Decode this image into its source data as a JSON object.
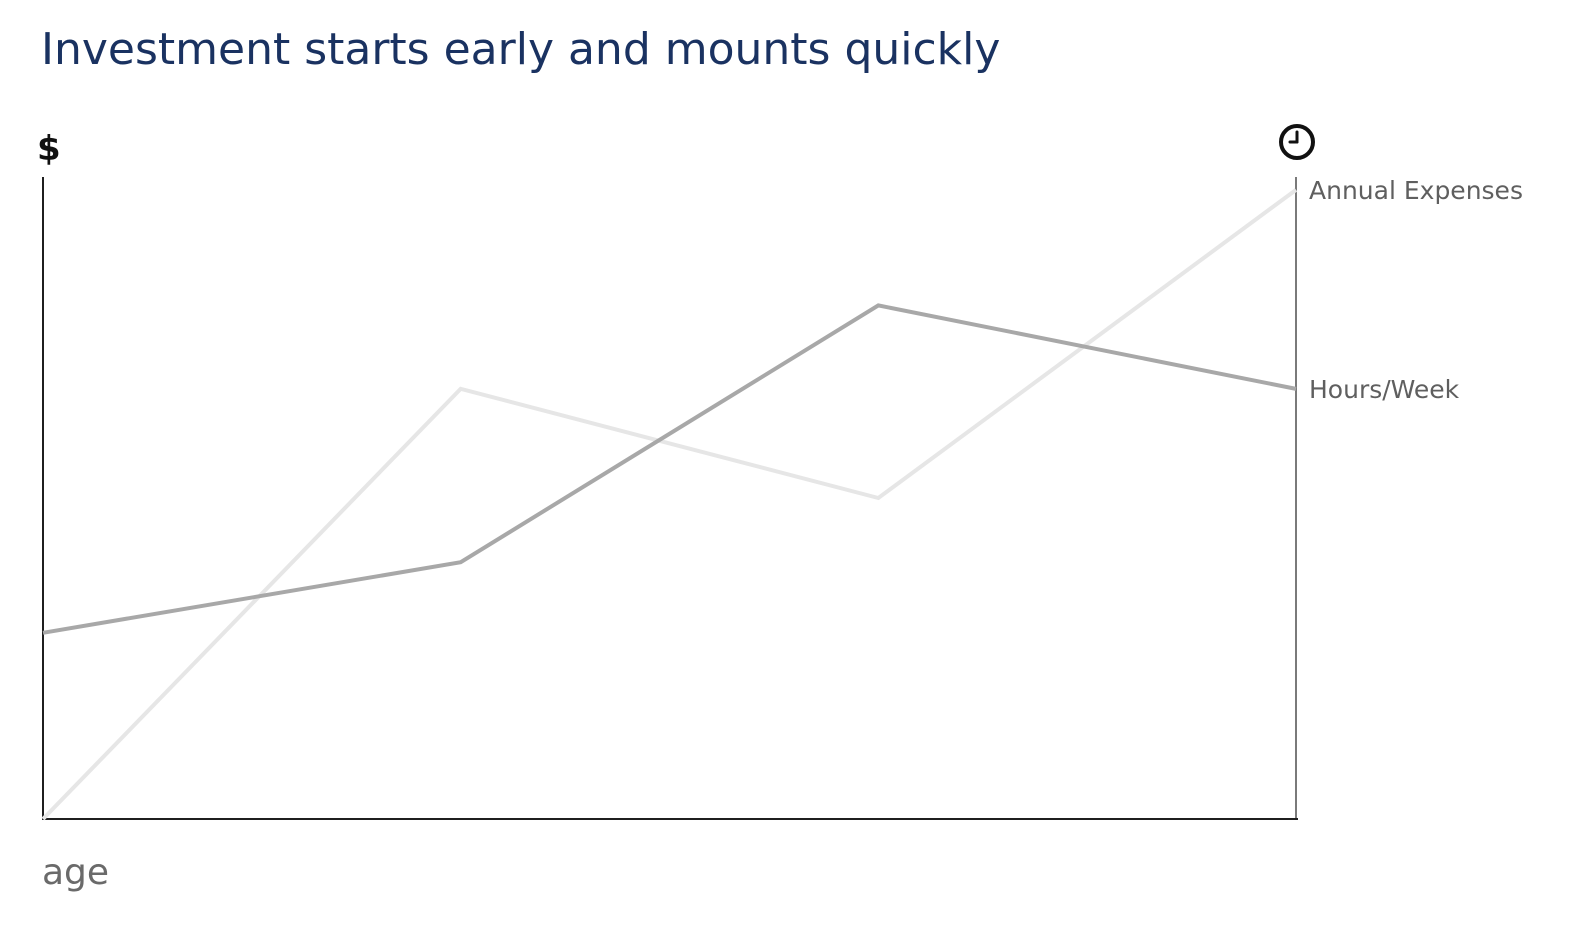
{
  "chart_data": {
    "type": "line",
    "title": "Investment starts early and mounts quickly",
    "xlabel": "age",
    "ylabel": "$",
    "y2label": "clock-icon",
    "x": [
      0,
      1,
      2,
      3
    ],
    "ylim": [
      0,
      10
    ],
    "grid": false,
    "legend": "none",
    "series": [
      {
        "name": "Annual Expenses",
        "values": [
          0,
          6.7,
          5.0,
          9.8
        ],
        "color": "#e6e6e6"
      },
      {
        "name": "Hours/Week",
        "values": [
          2.9,
          4.0,
          8.0,
          6.7
        ],
        "color": "#a8a8a8"
      }
    ]
  },
  "colors": {
    "title": "#1a3261",
    "axis": "#1f1f1f",
    "right_axis": "#7a7a7a",
    "label_text": "#5f5f5f",
    "xlabel_text": "#6a6a6a"
  }
}
